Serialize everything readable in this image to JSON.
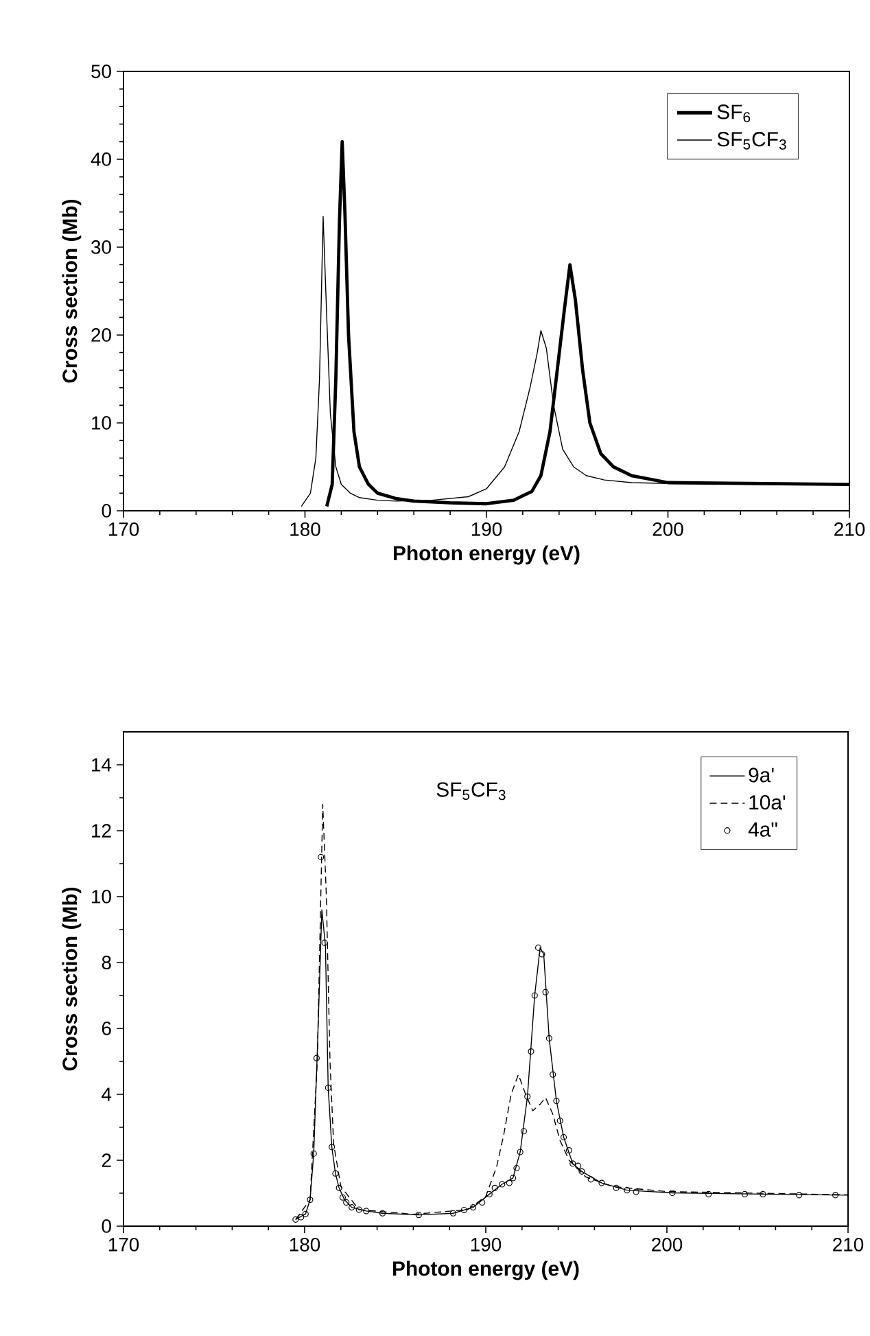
{
  "chart_data": [
    {
      "type": "line",
      "xlabel": "Photon energy (eV)",
      "ylabel": "Cross section (Mb)",
      "xlim": [
        170,
        210
      ],
      "xticks": [
        170,
        180,
        190,
        200,
        210
      ],
      "ylim": [
        0,
        50
      ],
      "yticks": [
        0,
        10,
        20,
        30,
        40,
        50
      ],
      "legend": "top right",
      "grid": false,
      "series": [
        {
          "name": "SF$_{6}$",
          "color": "#000000",
          "x": [
            181.2,
            181.5,
            181.7,
            181.9,
            182.05,
            182.2,
            182.4,
            182.7,
            183.0,
            183.5,
            184.0,
            185.0,
            186.0,
            188.0,
            190.0,
            191.5,
            192.5,
            193.0,
            193.5,
            193.9,
            194.3,
            194.6,
            194.9,
            195.3,
            195.7,
            196.3,
            197.0,
            198.0,
            200.0,
            205.0,
            210.0
          ],
          "values": [
            0.5,
            3,
            15,
            33,
            42,
            34,
            20,
            9,
            5,
            3,
            2,
            1.4,
            1.1,
            0.9,
            0.8,
            1.2,
            2.2,
            4,
            9,
            16,
            23,
            28,
            24,
            16,
            10,
            6.5,
            5,
            4,
            3.2,
            3.1,
            3
          ]
        },
        {
          "name": "SF$_{5}$CF$_{3}$",
          "color": "#000000",
          "x": [
            179.8,
            180.3,
            180.6,
            180.8,
            181.0,
            181.2,
            181.4,
            181.7,
            182.0,
            182.5,
            183.0,
            184.0,
            185.0,
            187.0,
            189.0,
            190.0,
            191.0,
            191.8,
            192.4,
            192.8,
            193.0,
            193.3,
            193.7,
            194.2,
            194.8,
            195.5,
            196.5,
            198.0,
            200.0,
            205.0,
            210.0
          ],
          "values": [
            0.5,
            2,
            6,
            15,
            33.5,
            22,
            11,
            5,
            3,
            2,
            1.5,
            1.2,
            1.1,
            1.2,
            1.6,
            2.5,
            5,
            9,
            14,
            18,
            20.5,
            18.5,
            12,
            7,
            5,
            4,
            3.5,
            3.2,
            3.1,
            3,
            3
          ]
        }
      ]
    },
    {
      "type": "line",
      "xlabel": "Photon energy (eV)",
      "ylabel": "Cross section (Mb)",
      "xlim": [
        170,
        210
      ],
      "xticks": [
        170,
        180,
        190,
        200,
        210
      ],
      "ylim": [
        0,
        15
      ],
      "yticks": [
        0,
        2,
        4,
        6,
        8,
        10,
        12,
        14
      ],
      "legend": "top right",
      "grid": false,
      "annotations": [
        "SF$_{5}$CF$_{3}$"
      ],
      "series": [
        {
          "name": "9a'",
          "color": "#000000",
          "line_style": "solid",
          "x": [
            179.5,
            180.05,
            180.3,
            180.5,
            180.7,
            180.95,
            181.15,
            181.3,
            181.5,
            181.7,
            181.9,
            182.2,
            182.6,
            183.4,
            184.3,
            186.3,
            188.2,
            189.3,
            190.2,
            190.9,
            191.5,
            191.9,
            192.3,
            192.7,
            193.0,
            193.2,
            193.5,
            193.9,
            194.3,
            194.8,
            195.3,
            196.4,
            197.8,
            200.3,
            205.3,
            210.0
          ],
          "values": [
            0.2,
            0.37,
            0.8,
            2.2,
            5.3,
            9.6,
            8.5,
            4.2,
            2.4,
            1.6,
            1.16,
            0.8,
            0.57,
            0.46,
            0.39,
            0.34,
            0.39,
            0.57,
            0.97,
            1.27,
            1.46,
            2.25,
            3.93,
            7.0,
            8.45,
            8.25,
            5.7,
            3.8,
            2.7,
            1.9,
            1.66,
            1.31,
            1.09,
            1.01,
            0.97,
            0.94
          ]
        },
        {
          "name": "10a'",
          "color": "#000000",
          "line_style": "dashed",
          "x": [
            179.5,
            180.3,
            180.7,
            181.0,
            181.2,
            181.4,
            181.6,
            182.0,
            183.0,
            186.0,
            189.0,
            190.0,
            190.6,
            191.0,
            191.4,
            191.8,
            192.2,
            192.6,
            193.0,
            193.3,
            193.7,
            194.1,
            194.6,
            195.5,
            197.0,
            200.0,
            210.0
          ],
          "values": [
            0.2,
            0.8,
            5,
            12.8,
            10,
            5,
            2.5,
            1.2,
            0.5,
            0.36,
            0.5,
            0.9,
            1.8,
            2.8,
            4.0,
            4.6,
            4.0,
            3.5,
            3.7,
            3.9,
            3.4,
            2.6,
            2.0,
            1.5,
            1.2,
            1.05,
            0.95
          ]
        },
        {
          "name": "4a\"",
          "type": "scatter",
          "marker": "circle",
          "color": "#000000",
          "x": [
            179.5,
            179.8,
            180.05,
            180.3,
            180.5,
            180.66,
            180.9,
            181.1,
            181.3,
            181.5,
            181.7,
            181.9,
            182.1,
            182.3,
            182.6,
            183.0,
            183.4,
            184.3,
            186.3,
            188.2,
            188.8,
            189.3,
            189.8,
            190.2,
            190.5,
            190.9,
            191.3,
            191.5,
            191.7,
            191.9,
            192.1,
            192.3,
            192.5,
            192.7,
            192.9,
            193.1,
            193.3,
            193.5,
            193.7,
            193.9,
            194.1,
            194.3,
            194.6,
            194.8,
            195.1,
            195.3,
            195.8,
            196.4,
            197.2,
            197.8,
            198.3,
            200.3,
            202.3,
            204.3,
            205.3,
            207.3,
            209.3
          ],
          "values": [
            0.2,
            0.27,
            0.37,
            0.8,
            2.2,
            5.1,
            11.2,
            8.6,
            4.2,
            2.4,
            1.6,
            1.16,
            0.87,
            0.72,
            0.57,
            0.5,
            0.46,
            0.39,
            0.34,
            0.39,
            0.49,
            0.57,
            0.72,
            0.97,
            1.16,
            1.27,
            1.31,
            1.46,
            1.76,
            2.25,
            2.88,
            3.93,
            5.3,
            7.0,
            8.45,
            8.25,
            7.1,
            5.7,
            4.6,
            3.8,
            3.2,
            2.7,
            2.3,
            1.9,
            1.83,
            1.66,
            1.42,
            1.31,
            1.16,
            1.09,
            1.04,
            1.01,
            0.97,
            0.97,
            0.97,
            0.94,
            0.94
          ]
        }
      ]
    }
  ]
}
